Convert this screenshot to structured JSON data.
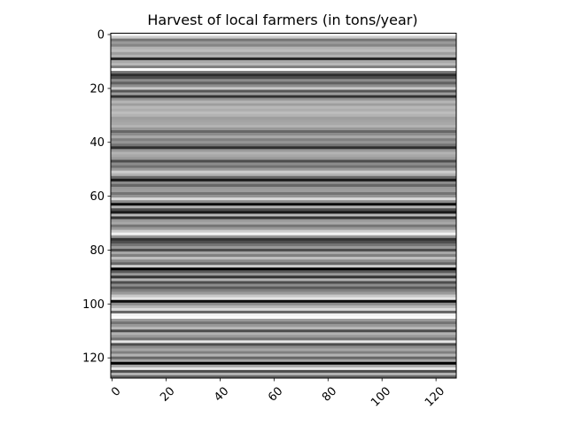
{
  "chart_data": {
    "type": "heatmap",
    "title": "Harvest of local farmers (in tons/year)",
    "xlabel": "",
    "ylabel": "",
    "colormap": "gray",
    "grid": false,
    "n_rows": 128,
    "n_cols": 128,
    "row_values": [
      0.98,
      0.8,
      0.45,
      0.6,
      0.52,
      0.7,
      0.74,
      0.62,
      0.7,
      0.15,
      0.66,
      0.72,
      0.5,
      1.0,
      0.45,
      0.18,
      0.3,
      0.55,
      0.38,
      0.56,
      0.78,
      0.34,
      0.62,
      0.2,
      0.58,
      0.71,
      0.62,
      0.72,
      0.68,
      0.74,
      0.7,
      0.62,
      0.64,
      0.66,
      0.7,
      0.6,
      0.4,
      0.55,
      0.66,
      0.5,
      0.58,
      0.45,
      0.18,
      0.6,
      0.7,
      0.66,
      0.6,
      0.3,
      0.55,
      0.44,
      0.6,
      0.8,
      0.7,
      0.42,
      0.1,
      0.55,
      0.4,
      0.6,
      0.62,
      0.45,
      0.58,
      0.85,
      0.55,
      0.05,
      0.7,
      0.3,
      0.1,
      0.72,
      0.2,
      0.6,
      0.66,
      0.45,
      0.6,
      0.8,
      0.95,
      0.6,
      0.2,
      0.3,
      0.45,
      0.6,
      0.3,
      0.65,
      0.5,
      0.75,
      0.55,
      0.4,
      0.8,
      0.0,
      0.35,
      0.6,
      0.2,
      0.7,
      0.3,
      0.55,
      0.35,
      0.5,
      0.6,
      0.78,
      0.9,
      0.05,
      0.55,
      0.7,
      0.85,
      0.4,
      0.95,
      0.98,
      0.6,
      0.45,
      0.6,
      0.72,
      0.3,
      0.7,
      0.6,
      0.45,
      0.9,
      0.3,
      0.55,
      0.65,
      0.5,
      0.7,
      0.4,
      0.65,
      0.0,
      0.65,
      0.9,
      0.3,
      0.7,
      0.4
    ],
    "x_ticks": [
      "0",
      "20",
      "40",
      "60",
      "80",
      "100",
      "120"
    ],
    "y_ticks": [
      "0",
      "20",
      "40",
      "60",
      "80",
      "100",
      "120"
    ],
    "x_range": [
      -0.5,
      127.5
    ],
    "y_range": [
      -0.5,
      127.5
    ],
    "y_inverted": true
  }
}
